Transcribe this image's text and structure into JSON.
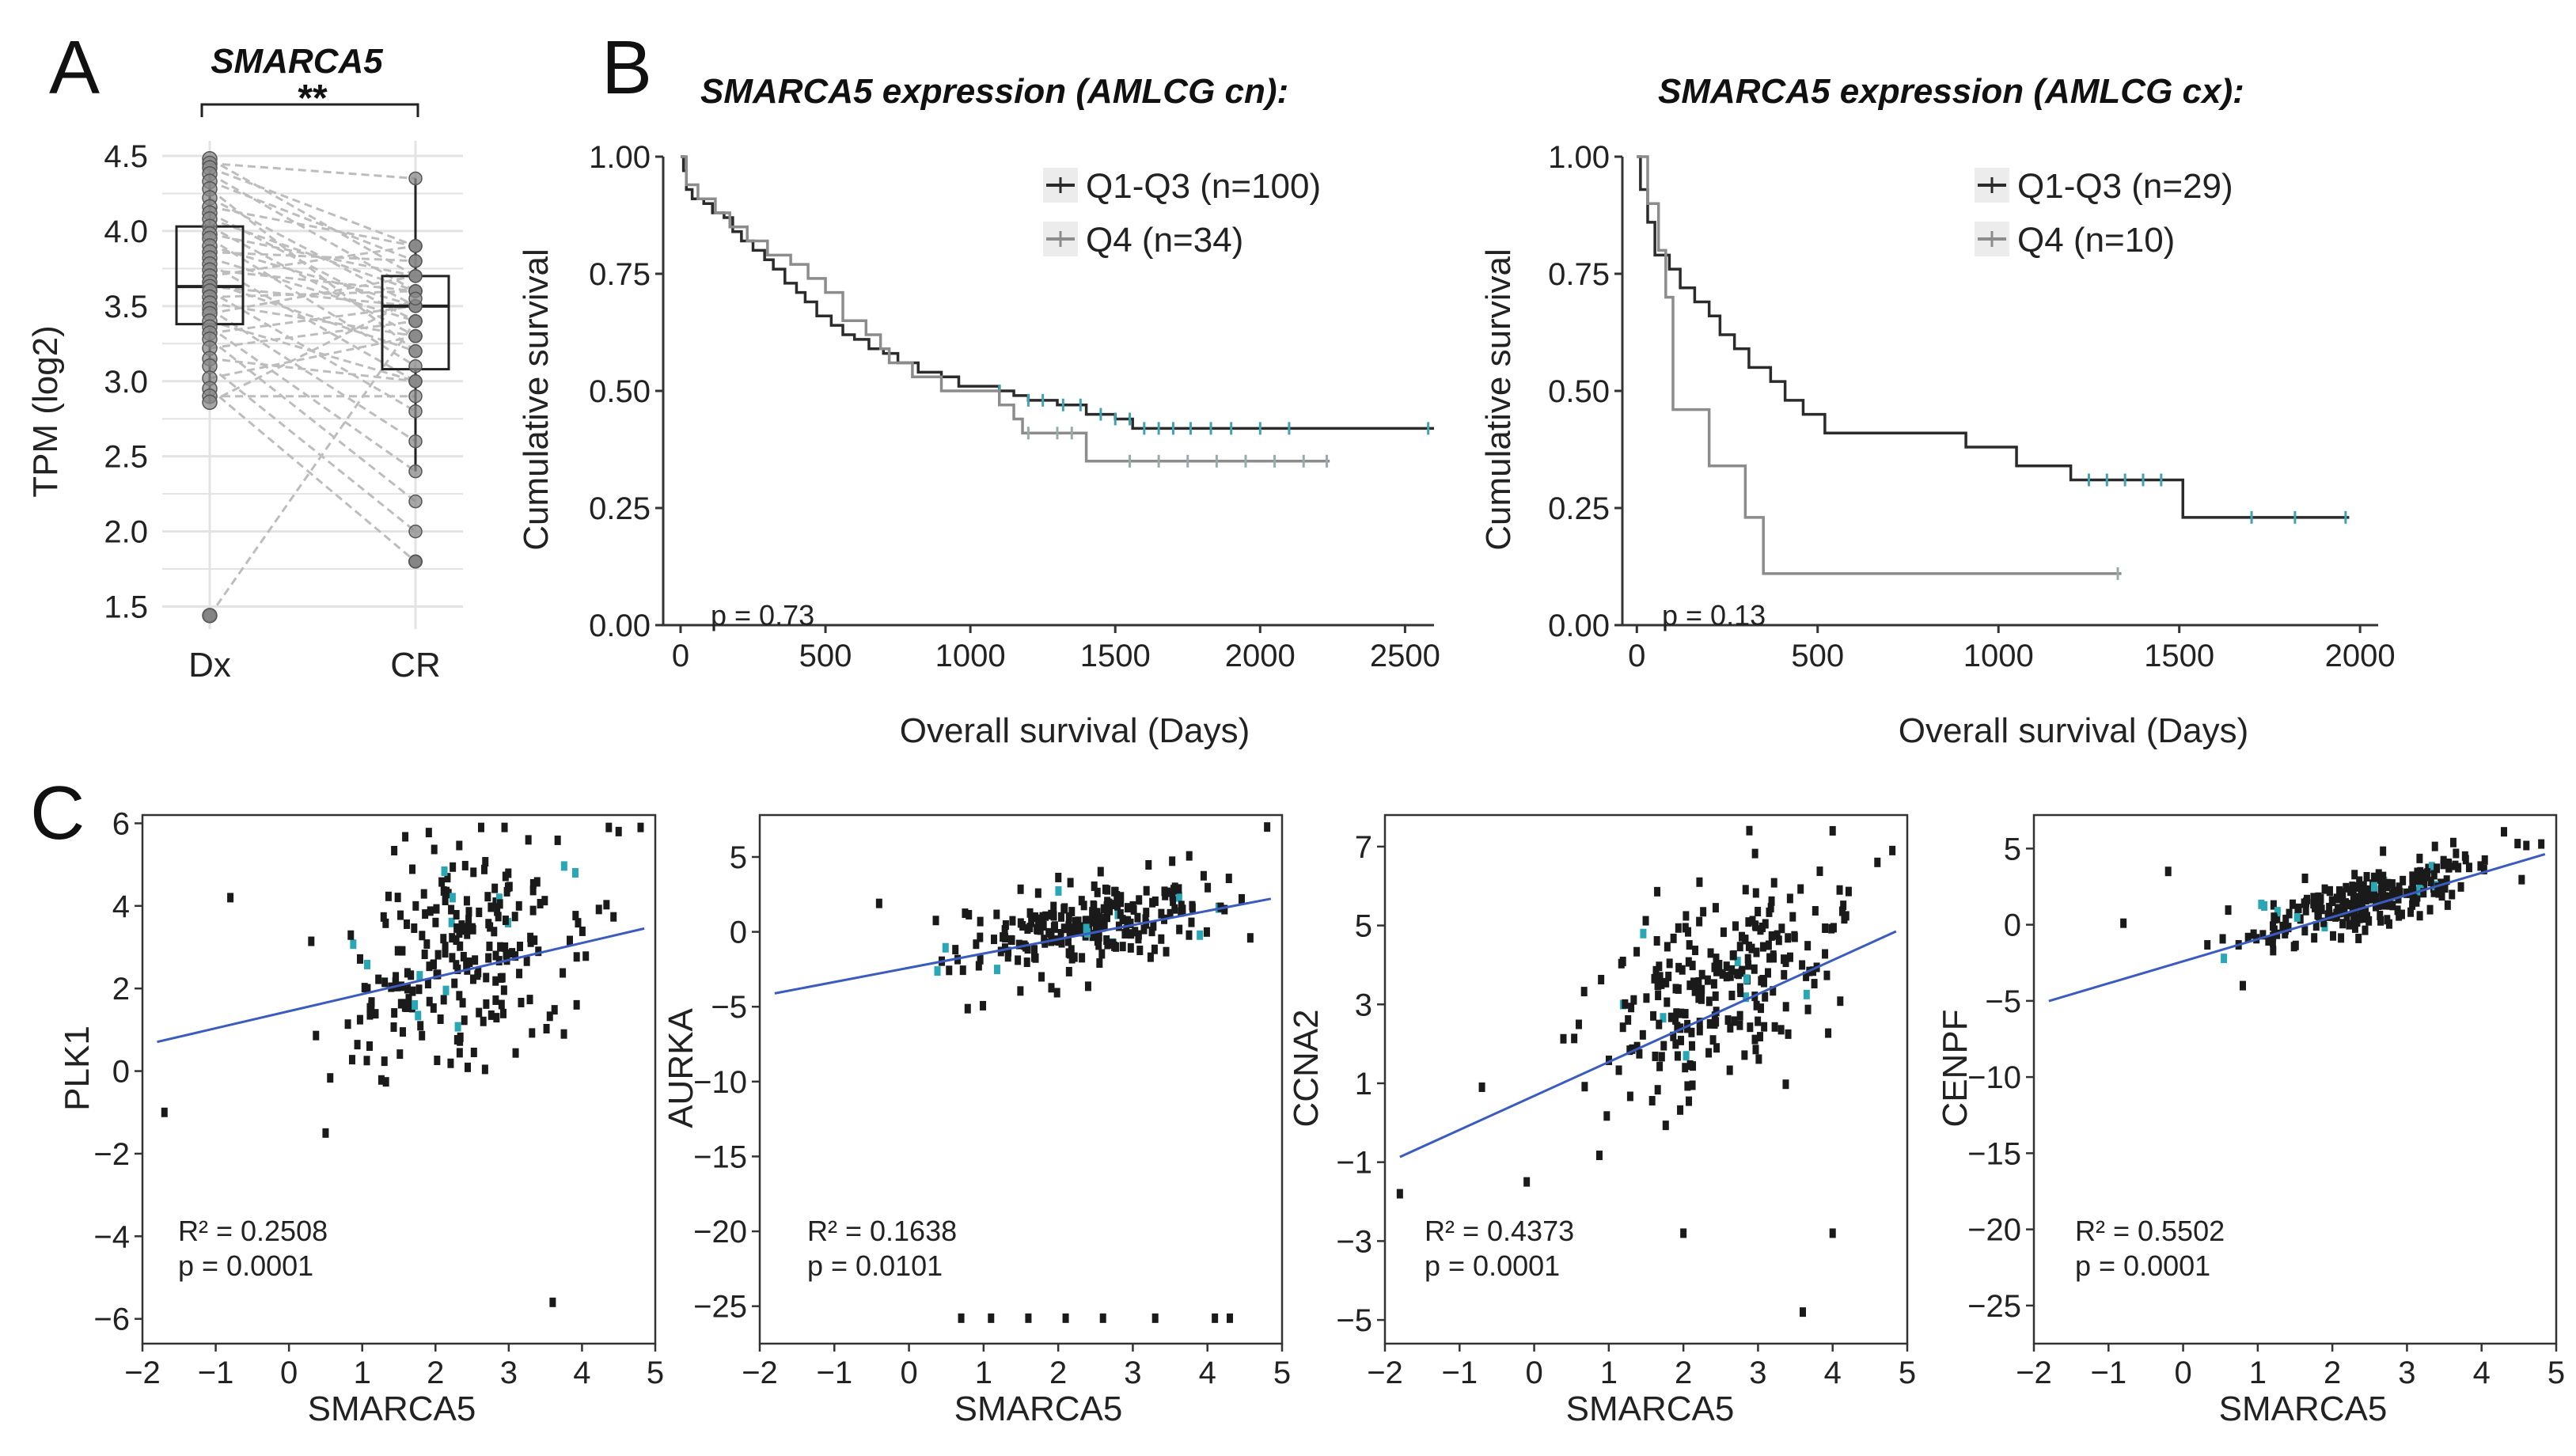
{
  "panel_labels": {
    "a": "A",
    "b": "B",
    "c": "C"
  },
  "colors": {
    "q1q3": "#2b2b2b",
    "q4": "#8c8c8c",
    "dot": "#1a1a1a",
    "dot_cyan": "#2aa7b5",
    "fit": "#3a5bbf",
    "paired": "#bdbdbd",
    "grid": "#e3e3e3"
  },
  "chart_data": [
    {
      "type": "boxplot",
      "title": "SMARCA5",
      "ylabel": "TPM (log2)",
      "categories": [
        "Dx",
        "CR"
      ],
      "ylim": [
        1.35,
        4.6
      ],
      "yticks": [
        "1.5",
        "2.0",
        "2.5",
        "3.0",
        "3.5",
        "4.0",
        "4.5"
      ],
      "significance": "**",
      "boxes": [
        {
          "name": "Dx",
          "q1": 3.38,
          "median": 3.63,
          "q3": 4.03,
          "whisker_low": 2.85,
          "whisker_high": 4.48,
          "outliers": [
            1.44
          ]
        },
        {
          "name": "CR",
          "q1": 3.08,
          "median": 3.5,
          "q3": 3.7,
          "whisker_low": 2.4,
          "whisker_high": 4.35,
          "outliers": [
            1.8
          ]
        }
      ],
      "pairs": [
        [
          4.48,
          3.7
        ],
        [
          4.45,
          4.35
        ],
        [
          4.42,
          3.9
        ],
        [
          4.38,
          3.6
        ],
        [
          4.33,
          3.8
        ],
        [
          4.28,
          3.2
        ],
        [
          4.22,
          3.5
        ],
        [
          4.16,
          3.9
        ],
        [
          4.12,
          3.4
        ],
        [
          4.08,
          3.6
        ],
        [
          4.03,
          3.3
        ],
        [
          3.98,
          3.7
        ],
        [
          3.95,
          3.1
        ],
        [
          3.9,
          3.5
        ],
        [
          3.86,
          3.8
        ],
        [
          3.82,
          3.4
        ],
        [
          3.78,
          3.0
        ],
        [
          3.74,
          3.6
        ],
        [
          3.7,
          3.9
        ],
        [
          3.66,
          3.2
        ],
        [
          3.63,
          3.5
        ],
        [
          3.6,
          2.8
        ],
        [
          3.56,
          3.6
        ],
        [
          3.52,
          3.3
        ],
        [
          3.48,
          2.6
        ],
        [
          3.45,
          3.7
        ],
        [
          3.4,
          3.0
        ],
        [
          3.36,
          2.4
        ],
        [
          3.32,
          3.5
        ],
        [
          3.28,
          2.2
        ],
        [
          3.22,
          3.4
        ],
        [
          3.15,
          3.0
        ],
        [
          3.1,
          2.0
        ],
        [
          3.02,
          3.3
        ],
        [
          2.95,
          1.8
        ],
        [
          2.9,
          2.9
        ],
        [
          2.86,
          3.55
        ],
        [
          1.44,
          3.4
        ]
      ]
    },
    {
      "type": "kaplan-meier",
      "title": "SMARCA5 expression (AMLCG cn):",
      "xlabel": "Overall survival (Days)",
      "ylabel": "Cumulative survival",
      "xlim": [
        -60,
        2600
      ],
      "ylim": [
        0,
        1.0
      ],
      "xticks": [
        "0",
        "500",
        "1000",
        "1500",
        "2000",
        "2500"
      ],
      "yticks": [
        "0.00",
        "0.25",
        "0.50",
        "0.75",
        "1.00"
      ],
      "pvalue": "p = 0.73",
      "series": [
        {
          "name": "Q1-Q3 (n=100)",
          "steps": [
            [
              0,
              1.0
            ],
            [
              10,
              0.97
            ],
            [
              20,
              0.93
            ],
            [
              40,
              0.91
            ],
            [
              80,
              0.9
            ],
            [
              110,
              0.88
            ],
            [
              150,
              0.87
            ],
            [
              180,
              0.84
            ],
            [
              210,
              0.82
            ],
            [
              250,
              0.8
            ],
            [
              290,
              0.78
            ],
            [
              320,
              0.76
            ],
            [
              360,
              0.73
            ],
            [
              400,
              0.71
            ],
            [
              430,
              0.69
            ],
            [
              470,
              0.66
            ],
            [
              520,
              0.64
            ],
            [
              560,
              0.62
            ],
            [
              600,
              0.61
            ],
            [
              650,
              0.59
            ],
            [
              700,
              0.58
            ],
            [
              750,
              0.56
            ],
            [
              820,
              0.54
            ],
            [
              900,
              0.53
            ],
            [
              960,
              0.51
            ],
            [
              1100,
              0.5
            ],
            [
              1150,
              0.49
            ],
            [
              1200,
              0.48
            ],
            [
              1300,
              0.47
            ],
            [
              1400,
              0.45
            ],
            [
              1500,
              0.44
            ],
            [
              1560,
              0.42
            ],
            [
              2600,
              0.42
            ]
          ],
          "censor": [
            1100,
            1200,
            1250,
            1320,
            1380,
            1450,
            1500,
            1550,
            1600,
            1650,
            1700,
            1760,
            1830,
            1900,
            2000,
            2100,
            2580
          ]
        },
        {
          "name": "Q4 (n=34)",
          "steps": [
            [
              0,
              1.0
            ],
            [
              20,
              0.94
            ],
            [
              60,
              0.91
            ],
            [
              120,
              0.88
            ],
            [
              170,
              0.85
            ],
            [
              230,
              0.82
            ],
            [
              300,
              0.79
            ],
            [
              380,
              0.77
            ],
            [
              440,
              0.74
            ],
            [
              500,
              0.71
            ],
            [
              560,
              0.65
            ],
            [
              640,
              0.62
            ],
            [
              690,
              0.59
            ],
            [
              720,
              0.56
            ],
            [
              800,
              0.53
            ],
            [
              900,
              0.5
            ],
            [
              1100,
              0.47
            ],
            [
              1150,
              0.44
            ],
            [
              1180,
              0.41
            ],
            [
              1400,
              0.35
            ],
            [
              2240,
              0.35
            ]
          ],
          "censor": [
            1200,
            1300,
            1350,
            1550,
            1650,
            1750,
            1850,
            1950,
            2050,
            2150,
            2230
          ]
        }
      ]
    },
    {
      "type": "kaplan-meier",
      "title": "SMARCA5 expression (AMLCG cx):",
      "xlabel": "Overall survival (Days)",
      "ylabel": "Cumulative survival",
      "xlim": [
        -40,
        2050
      ],
      "ylim": [
        0,
        1.0
      ],
      "xticks": [
        "0",
        "500",
        "1000",
        "1500",
        "2000"
      ],
      "yticks": [
        "0.00",
        "0.25",
        "0.50",
        "0.75",
        "1.00"
      ],
      "pvalue": "p = 0.13",
      "series": [
        {
          "name": "Q1-Q3 (n=29)",
          "steps": [
            [
              0,
              1.0
            ],
            [
              10,
              0.93
            ],
            [
              30,
              0.86
            ],
            [
              50,
              0.79
            ],
            [
              90,
              0.76
            ],
            [
              120,
              0.72
            ],
            [
              160,
              0.69
            ],
            [
              200,
              0.66
            ],
            [
              230,
              0.62
            ],
            [
              270,
              0.59
            ],
            [
              310,
              0.55
            ],
            [
              370,
              0.52
            ],
            [
              410,
              0.48
            ],
            [
              460,
              0.45
            ],
            [
              520,
              0.41
            ],
            [
              900,
              0.41
            ],
            [
              910,
              0.38
            ],
            [
              1050,
              0.34
            ],
            [
              1200,
              0.31
            ],
            [
              1500,
              0.31
            ],
            [
              1510,
              0.23
            ],
            [
              1970,
              0.23
            ]
          ],
          "censor": [
            1250,
            1300,
            1350,
            1400,
            1450,
            1700,
            1820,
            1960
          ]
        },
        {
          "name": "Q4 (n=10)",
          "steps": [
            [
              0,
              1.0
            ],
            [
              30,
              0.9
            ],
            [
              60,
              0.8
            ],
            [
              80,
              0.7
            ],
            [
              100,
              0.46
            ],
            [
              200,
              0.34
            ],
            [
              300,
              0.23
            ],
            [
              350,
              0.11
            ],
            [
              1340,
              0.11
            ]
          ],
          "censor": [
            1330
          ]
        }
      ]
    },
    {
      "type": "scatter",
      "xlabel": "SMARCA5",
      "ylabel": "PLK1",
      "xlim": [
        -2,
        5
      ],
      "ylim": [
        -6.6,
        6.2
      ],
      "xticks": [
        "−2",
        "−1",
        "0",
        "1",
        "2",
        "3",
        "4",
        "5"
      ],
      "yticks": [
        "−6",
        "−4",
        "−2",
        "0",
        "2",
        "4",
        "6"
      ],
      "r2": "R² = 0.2508",
      "pvalue": "p = 0.0001",
      "fit": {
        "slope": 0.413,
        "intercept": 1.45
      },
      "seed": 11,
      "n": 230,
      "sd": 1.35,
      "extra_points": [
        [
          -1.7,
          -1.0
        ],
        [
          -0.8,
          4.2
        ],
        [
          0.5,
          -1.5
        ],
        [
          3.6,
          -5.6
        ],
        [
          4.8,
          5.9
        ],
        [
          4.5,
          5.8
        ]
      ]
    },
    {
      "type": "scatter",
      "xlabel": "SMARCA5",
      "ylabel": "AURKA",
      "xlim": [
        -2,
        5
      ],
      "ylim": [
        -27.5,
        7.8
      ],
      "xticks": [
        "−2",
        "−1",
        "0",
        "1",
        "2",
        "3",
        "4",
        "5"
      ],
      "yticks": [
        "−25",
        "−20",
        "−15",
        "−10",
        "−5",
        "0",
        "5"
      ],
      "r2": "R² = 0.1638",
      "pvalue": "p = 0.0101",
      "fit": {
        "slope": 0.95,
        "intercept": -2.4
      },
      "seed": 23,
      "n": 240,
      "sd": 1.4,
      "extra_points": [
        [
          -0.4,
          1.9
        ],
        [
          0.7,
          -25.8
        ],
        [
          1.1,
          -25.8
        ],
        [
          1.6,
          -25.8
        ],
        [
          2.1,
          -25.8
        ],
        [
          2.6,
          -25.8
        ],
        [
          3.3,
          -25.8
        ],
        [
          4.1,
          -25.8
        ],
        [
          4.3,
          -25.8
        ],
        [
          4.8,
          7.0
        ]
      ]
    },
    {
      "type": "scatter",
      "xlabel": "SMARCA5",
      "ylabel": "CCNA2",
      "xlim": [
        -2,
        5
      ],
      "ylim": [
        -5.6,
        7.8
      ],
      "xticks": [
        "−2",
        "−1",
        "0",
        "1",
        "2",
        "3",
        "4",
        "5"
      ],
      "yticks": [
        "−5",
        "−3",
        "−1",
        "1",
        "3",
        "5",
        "7"
      ],
      "r2": "R² = 0.4373",
      "pvalue": "p = 0.0001",
      "fit": {
        "slope": 0.86,
        "intercept": 0.68
      },
      "seed": 37,
      "n": 240,
      "sd": 1.2,
      "extra_points": [
        [
          -1.8,
          -1.8
        ],
        [
          -0.7,
          0.9
        ],
        [
          -0.1,
          -1.5
        ],
        [
          2.0,
          -2.8
        ],
        [
          3.6,
          -4.8
        ],
        [
          4.0,
          7.4
        ],
        [
          4.6,
          6.6
        ],
        [
          4.8,
          6.9
        ],
        [
          4.0,
          -2.8
        ]
      ]
    },
    {
      "type": "scatter",
      "xlabel": "SMARCA5",
      "ylabel": "CENPF",
      "xlim": [
        -2,
        5
      ],
      "ylim": [
        -27.5,
        7.2
      ],
      "xticks": [
        "−2",
        "−1",
        "0",
        "1",
        "2",
        "3",
        "4",
        "5"
      ],
      "yticks": [
        "−25",
        "−20",
        "−15",
        "−10",
        "−5",
        "0",
        "5"
      ],
      "r2": "R² = 0.5502",
      "pvalue": "p = 0.0001",
      "fit": {
        "slope": 1.45,
        "intercept": -2.4
      },
      "seed": 53,
      "n": 240,
      "sd": 1.0,
      "extra_points": [
        [
          -0.8,
          0.1
        ],
        [
          -0.2,
          3.5
        ],
        [
          0.8,
          -4.0
        ],
        [
          4.3,
          6.1
        ],
        [
          4.6,
          5.2
        ],
        [
          4.8,
          5.3
        ]
      ]
    }
  ]
}
